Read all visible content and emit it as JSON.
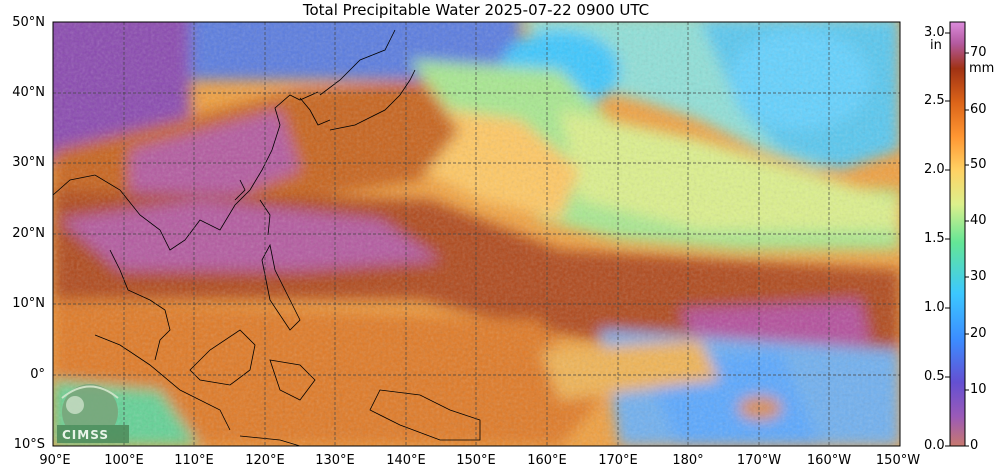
{
  "title": "Total Precipitable Water  2025-07-22 0900 UTC",
  "lat_labels": [
    "50°N",
    "40°N",
    "30°N",
    "20°N",
    "10°N",
    "0°",
    "10°S"
  ],
  "lon_labels": [
    "90°E",
    "100°E",
    "110°E",
    "120°E",
    "130°E",
    "140°E",
    "150°E",
    "160°E",
    "170°E",
    "180°",
    "170°W",
    "160°W",
    "150°W"
  ],
  "colorbar": {
    "unit_in": "in",
    "unit_mm": "mm",
    "in_ticks": [
      "3.0",
      "2.5",
      "2.0",
      "1.5",
      "1.0",
      "0.5",
      "0.0"
    ],
    "mm_ticks": [
      "70",
      "60",
      "50",
      "40",
      "30",
      "20",
      "10",
      "0"
    ],
    "colors": [
      "#c8786e",
      "#a050b4",
      "#6450d2",
      "#3c8cff",
      "#3cc8ff",
      "#64e696",
      "#dcf08c",
      "#ffd264",
      "#ff9632",
      "#dc6419",
      "#a03214",
      "#b45aa0",
      "#dc8cdc"
    ]
  },
  "logo": {
    "text": "CIMSS"
  }
}
